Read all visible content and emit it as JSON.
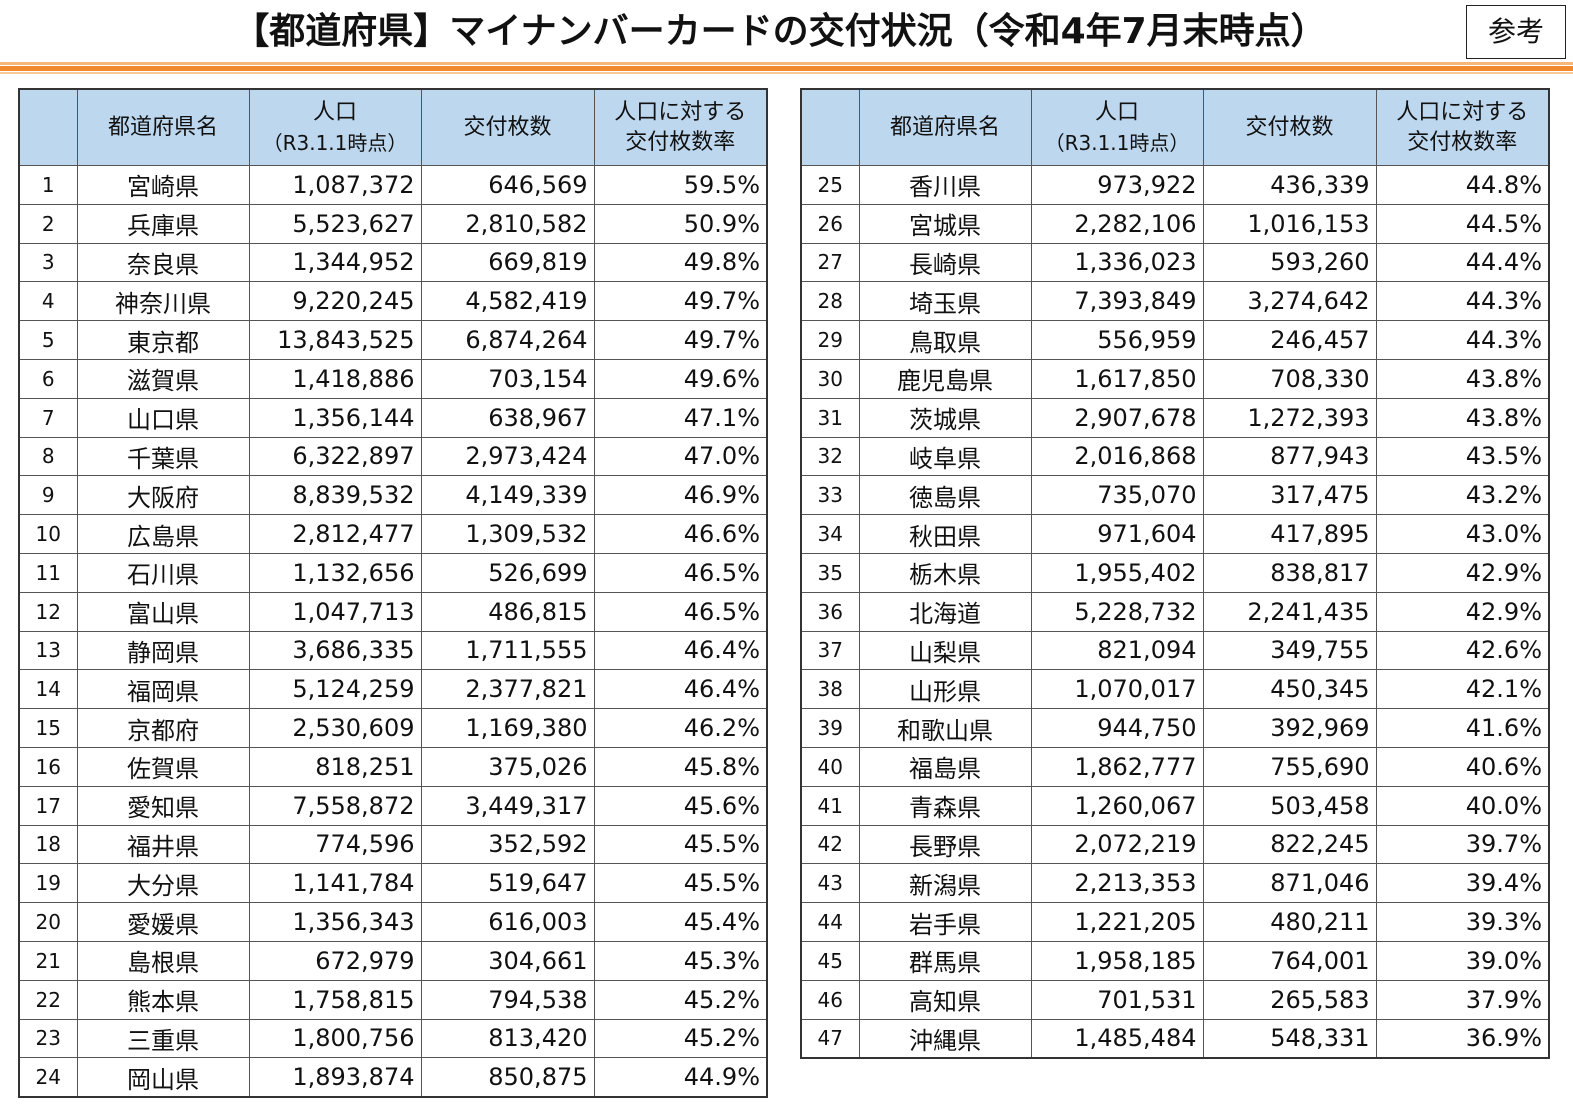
{
  "title": "【都道府県】マイナンバーカードの交付状況（令和4年7月末時点）",
  "badge": "参考",
  "headers": {
    "no": "",
    "name": "都道府県名",
    "pop": "人口",
    "pop_sub": "（R3.1.1時点）",
    "issued": "交付枚数",
    "rate_line1": "人口に対する",
    "rate_line2": "交付枚数率"
  },
  "rows": [
    [
      "1",
      "宮崎県",
      "1,087,372",
      "646,569",
      "59.5%"
    ],
    [
      "2",
      "兵庫県",
      "5,523,627",
      "2,810,582",
      "50.9%"
    ],
    [
      "3",
      "奈良県",
      "1,344,952",
      "669,819",
      "49.8%"
    ],
    [
      "4",
      "神奈川県",
      "9,220,245",
      "4,582,419",
      "49.7%"
    ],
    [
      "5",
      "東京都",
      "13,843,525",
      "6,874,264",
      "49.7%"
    ],
    [
      "6",
      "滋賀県",
      "1,418,886",
      "703,154",
      "49.6%"
    ],
    [
      "7",
      "山口県",
      "1,356,144",
      "638,967",
      "47.1%"
    ],
    [
      "8",
      "千葉県",
      "6,322,897",
      "2,973,424",
      "47.0%"
    ],
    [
      "9",
      "大阪府",
      "8,839,532",
      "4,149,339",
      "46.9%"
    ],
    [
      "10",
      "広島県",
      "2,812,477",
      "1,309,532",
      "46.6%"
    ],
    [
      "11",
      "石川県",
      "1,132,656",
      "526,699",
      "46.5%"
    ],
    [
      "12",
      "富山県",
      "1,047,713",
      "486,815",
      "46.5%"
    ],
    [
      "13",
      "静岡県",
      "3,686,335",
      "1,711,555",
      "46.4%"
    ],
    [
      "14",
      "福岡県",
      "5,124,259",
      "2,377,821",
      "46.4%"
    ],
    [
      "15",
      "京都府",
      "2,530,609",
      "1,169,380",
      "46.2%"
    ],
    [
      "16",
      "佐賀県",
      "818,251",
      "375,026",
      "45.8%"
    ],
    [
      "17",
      "愛知県",
      "7,558,872",
      "3,449,317",
      "45.6%"
    ],
    [
      "18",
      "福井県",
      "774,596",
      "352,592",
      "45.5%"
    ],
    [
      "19",
      "大分県",
      "1,141,784",
      "519,647",
      "45.5%"
    ],
    [
      "20",
      "愛媛県",
      "1,356,343",
      "616,003",
      "45.4%"
    ],
    [
      "21",
      "島根県",
      "672,979",
      "304,661",
      "45.3%"
    ],
    [
      "22",
      "熊本県",
      "1,758,815",
      "794,538",
      "45.2%"
    ],
    [
      "23",
      "三重県",
      "1,800,756",
      "813,420",
      "45.2%"
    ],
    [
      "24",
      "岡山県",
      "1,893,874",
      "850,875",
      "44.9%"
    ],
    [
      "25",
      "香川県",
      "973,922",
      "436,339",
      "44.8%"
    ],
    [
      "26",
      "宮城県",
      "2,282,106",
      "1,016,153",
      "44.5%"
    ],
    [
      "27",
      "長崎県",
      "1,336,023",
      "593,260",
      "44.4%"
    ],
    [
      "28",
      "埼玉県",
      "7,393,849",
      "3,274,642",
      "44.3%"
    ],
    [
      "29",
      "鳥取県",
      "556,959",
      "246,457",
      "44.3%"
    ],
    [
      "30",
      "鹿児島県",
      "1,617,850",
      "708,330",
      "43.8%"
    ],
    [
      "31",
      "茨城県",
      "2,907,678",
      "1,272,393",
      "43.8%"
    ],
    [
      "32",
      "岐阜県",
      "2,016,868",
      "877,943",
      "43.5%"
    ],
    [
      "33",
      "徳島県",
      "735,070",
      "317,475",
      "43.2%"
    ],
    [
      "34",
      "秋田県",
      "971,604",
      "417,895",
      "43.0%"
    ],
    [
      "35",
      "栃木県",
      "1,955,402",
      "838,817",
      "42.9%"
    ],
    [
      "36",
      "北海道",
      "5,228,732",
      "2,241,435",
      "42.9%"
    ],
    [
      "37",
      "山梨県",
      "821,094",
      "349,755",
      "42.6%"
    ],
    [
      "38",
      "山形県",
      "1,070,017",
      "450,345",
      "42.1%"
    ],
    [
      "39",
      "和歌山県",
      "944,750",
      "392,969",
      "41.6%"
    ],
    [
      "40",
      "福島県",
      "1,862,777",
      "755,690",
      "40.6%"
    ],
    [
      "41",
      "青森県",
      "1,260,067",
      "503,458",
      "40.0%"
    ],
    [
      "42",
      "長野県",
      "2,072,219",
      "822,245",
      "39.7%"
    ],
    [
      "43",
      "新潟県",
      "2,213,353",
      "871,046",
      "39.4%"
    ],
    [
      "44",
      "岩手県",
      "1,221,205",
      "480,211",
      "39.3%"
    ],
    [
      "45",
      "群馬県",
      "1,958,185",
      "764,001",
      "39.0%"
    ],
    [
      "46",
      "高知県",
      "701,531",
      "265,583",
      "37.9%"
    ],
    [
      "47",
      "沖縄県",
      "1,485,484",
      "548,331",
      "36.9%"
    ]
  ],
  "colors": {
    "header_bg": "#bdd7ee",
    "accent_rule": "#f08a2c"
  }
}
